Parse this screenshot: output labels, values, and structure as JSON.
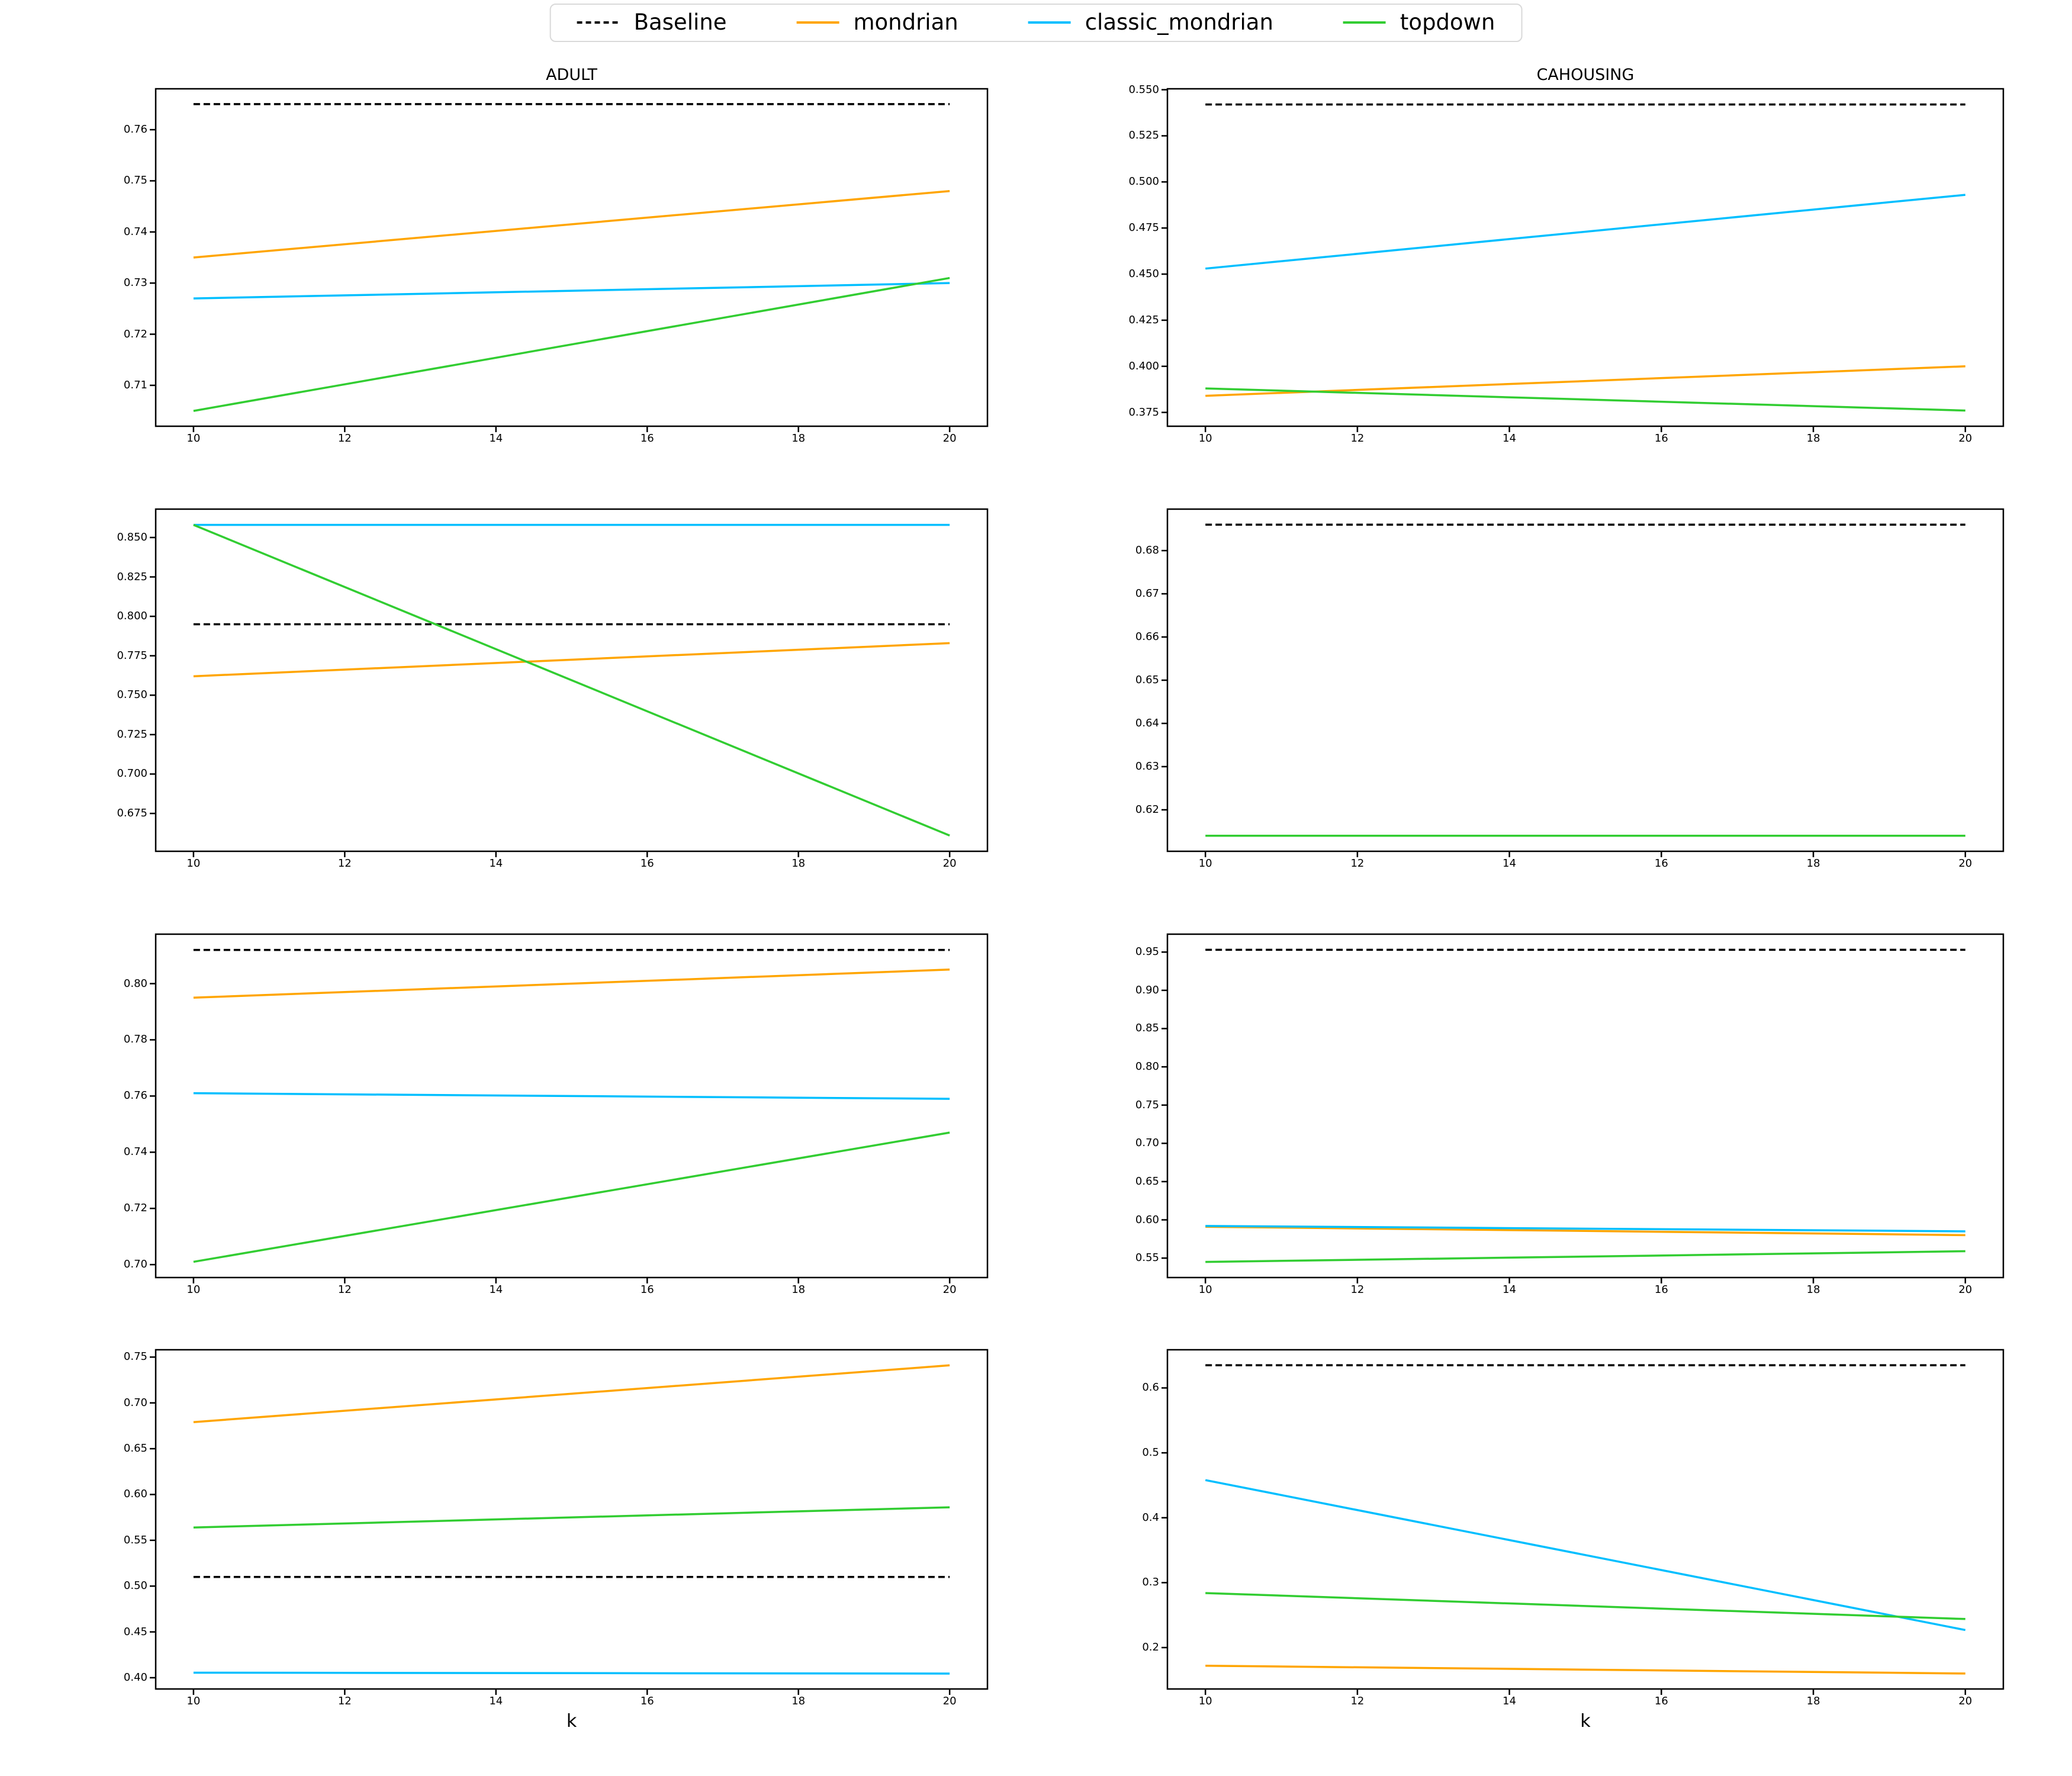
{
  "figure": {
    "background": "#ffffff"
  },
  "legend": {
    "items": [
      {
        "label": "Baseline",
        "color": "#000000",
        "line_style": "dashed"
      },
      {
        "label": "mondrian",
        "color": "#FFA500",
        "line_style": "solid"
      },
      {
        "label": "classic_mondrian",
        "color": "#00BFFF",
        "line_style": "solid"
      },
      {
        "label": "topdown",
        "color": "#32CD32",
        "line_style": "solid"
      }
    ]
  },
  "columns": [
    "ADULT",
    "CAHOUSING"
  ],
  "x_axis_label": "k",
  "chart_data": [
    {
      "type": "line",
      "title": "ADULT",
      "xlabel": "",
      "x": [
        10,
        20
      ],
      "xlim": [
        9.5,
        20.5
      ],
      "xticks": [
        "10",
        "12",
        "14",
        "16",
        "18",
        "20"
      ],
      "yticks": [
        "0.71",
        "0.72",
        "0.73",
        "0.74",
        "0.75",
        "0.76"
      ],
      "ylim": [
        0.702,
        0.768
      ],
      "baseline": 0.765,
      "series": [
        {
          "name": "mondrian",
          "values": [
            0.735,
            0.748
          ]
        },
        {
          "name": "classic_mondrian",
          "values": [
            0.727,
            0.73
          ]
        },
        {
          "name": "topdown",
          "values": [
            0.705,
            0.731
          ]
        }
      ]
    },
    {
      "type": "line",
      "title": "CAHOUSING",
      "xlabel": "",
      "x": [
        10,
        20
      ],
      "xlim": [
        9.5,
        20.5
      ],
      "xticks": [
        "10",
        "12",
        "14",
        "16",
        "18",
        "20"
      ],
      "yticks": [
        "0.375",
        "0.400",
        "0.425",
        "0.450",
        "0.475",
        "0.500",
        "0.525",
        "0.550"
      ],
      "ylim": [
        0.3675,
        0.5505
      ],
      "baseline": 0.542,
      "series": [
        {
          "name": "mondrian",
          "values": [
            0.384,
            0.4
          ]
        },
        {
          "name": "classic_mondrian",
          "values": [
            0.453,
            0.493
          ]
        },
        {
          "name": "topdown",
          "values": [
            0.388,
            0.376
          ]
        }
      ]
    },
    {
      "type": "line",
      "title": "",
      "xlabel": "",
      "x": [
        10,
        20
      ],
      "xlim": [
        9.5,
        20.5
      ],
      "xticks": [
        "10",
        "12",
        "14",
        "16",
        "18",
        "20"
      ],
      "yticks": [
        "0.675",
        "0.700",
        "0.725",
        "0.750",
        "0.775",
        "0.800",
        "0.825",
        "0.850"
      ],
      "ylim": [
        0.651,
        0.868
      ],
      "baseline": 0.795,
      "series": [
        {
          "name": "mondrian",
          "values": [
            0.762,
            0.783
          ]
        },
        {
          "name": "classic_mondrian",
          "values": [
            0.858,
            0.858
          ]
        },
        {
          "name": "topdown",
          "values": [
            0.858,
            0.661
          ]
        }
      ]
    },
    {
      "type": "line",
      "title": "",
      "xlabel": "",
      "x": [
        10,
        20
      ],
      "xlim": [
        9.5,
        20.5
      ],
      "xticks": [
        "10",
        "12",
        "14",
        "16",
        "18",
        "20"
      ],
      "yticks": [
        "0.62",
        "0.63",
        "0.64",
        "0.65",
        "0.66",
        "0.67",
        "0.68"
      ],
      "ylim": [
        0.6104,
        0.6896
      ],
      "baseline": 0.686,
      "series": [
        {
          "name": "topdown",
          "values": [
            0.614,
            0.614
          ]
        }
      ]
    },
    {
      "type": "line",
      "title": "",
      "xlabel": "",
      "x": [
        10,
        20
      ],
      "xlim": [
        9.5,
        20.5
      ],
      "xticks": [
        "10",
        "12",
        "14",
        "16",
        "18",
        "20"
      ],
      "yticks": [
        "0.70",
        "0.72",
        "0.74",
        "0.76",
        "0.78",
        "0.80"
      ],
      "ylim": [
        0.6954,
        0.8176
      ],
      "baseline": 0.812,
      "series": [
        {
          "name": "mondrian",
          "values": [
            0.795,
            0.805
          ]
        },
        {
          "name": "classic_mondrian",
          "values": [
            0.761,
            0.759
          ]
        },
        {
          "name": "topdown",
          "values": [
            0.701,
            0.747
          ]
        }
      ]
    },
    {
      "type": "line",
      "title": "",
      "xlabel": "",
      "x": [
        10,
        20
      ],
      "xlim": [
        9.5,
        20.5
      ],
      "xticks": [
        "10",
        "12",
        "14",
        "16",
        "18",
        "20"
      ],
      "yticks": [
        "0.55",
        "0.60",
        "0.65",
        "0.70",
        "0.75",
        "0.80",
        "0.85",
        "0.90",
        "0.95"
      ],
      "ylim": [
        0.5246,
        0.9734
      ],
      "baseline": 0.953,
      "series": [
        {
          "name": "mondrian",
          "values": [
            0.591,
            0.58
          ]
        },
        {
          "name": "classic_mondrian",
          "values": [
            0.592,
            0.585
          ]
        },
        {
          "name": "topdown",
          "values": [
            0.545,
            0.559
          ]
        }
      ]
    },
    {
      "type": "line",
      "title": "",
      "xlabel": "k",
      "x": [
        10,
        20
      ],
      "xlim": [
        9.5,
        20.5
      ],
      "xticks": [
        "10",
        "12",
        "14",
        "16",
        "18",
        "20"
      ],
      "yticks": [
        "0.40",
        "0.45",
        "0.50",
        "0.55",
        "0.60",
        "0.65",
        "0.70",
        "0.75"
      ],
      "ylim": [
        0.3877,
        0.758
      ],
      "baseline": 0.51,
      "series": [
        {
          "name": "mondrian",
          "values": [
            0.679,
            0.741
          ]
        },
        {
          "name": "classic_mondrian",
          "values": [
            0.4055,
            0.4045
          ]
        },
        {
          "name": "topdown",
          "values": [
            0.564,
            0.586
          ]
        }
      ]
    },
    {
      "type": "line",
      "title": "",
      "xlabel": "k",
      "x": [
        10,
        20
      ],
      "xlim": [
        9.5,
        20.5
      ],
      "xticks": [
        "10",
        "12",
        "14",
        "16",
        "18",
        "20"
      ],
      "yticks": [
        "0.2",
        "0.3",
        "0.4",
        "0.5",
        "0.6"
      ],
      "ylim": [
        0.1362,
        0.6588
      ],
      "baseline": 0.635,
      "series": [
        {
          "name": "mondrian",
          "values": [
            0.172,
            0.16
          ]
        },
        {
          "name": "classic_mondrian",
          "values": [
            0.458,
            0.227
          ]
        },
        {
          "name": "topdown",
          "values": [
            0.284,
            0.244
          ]
        }
      ]
    }
  ]
}
